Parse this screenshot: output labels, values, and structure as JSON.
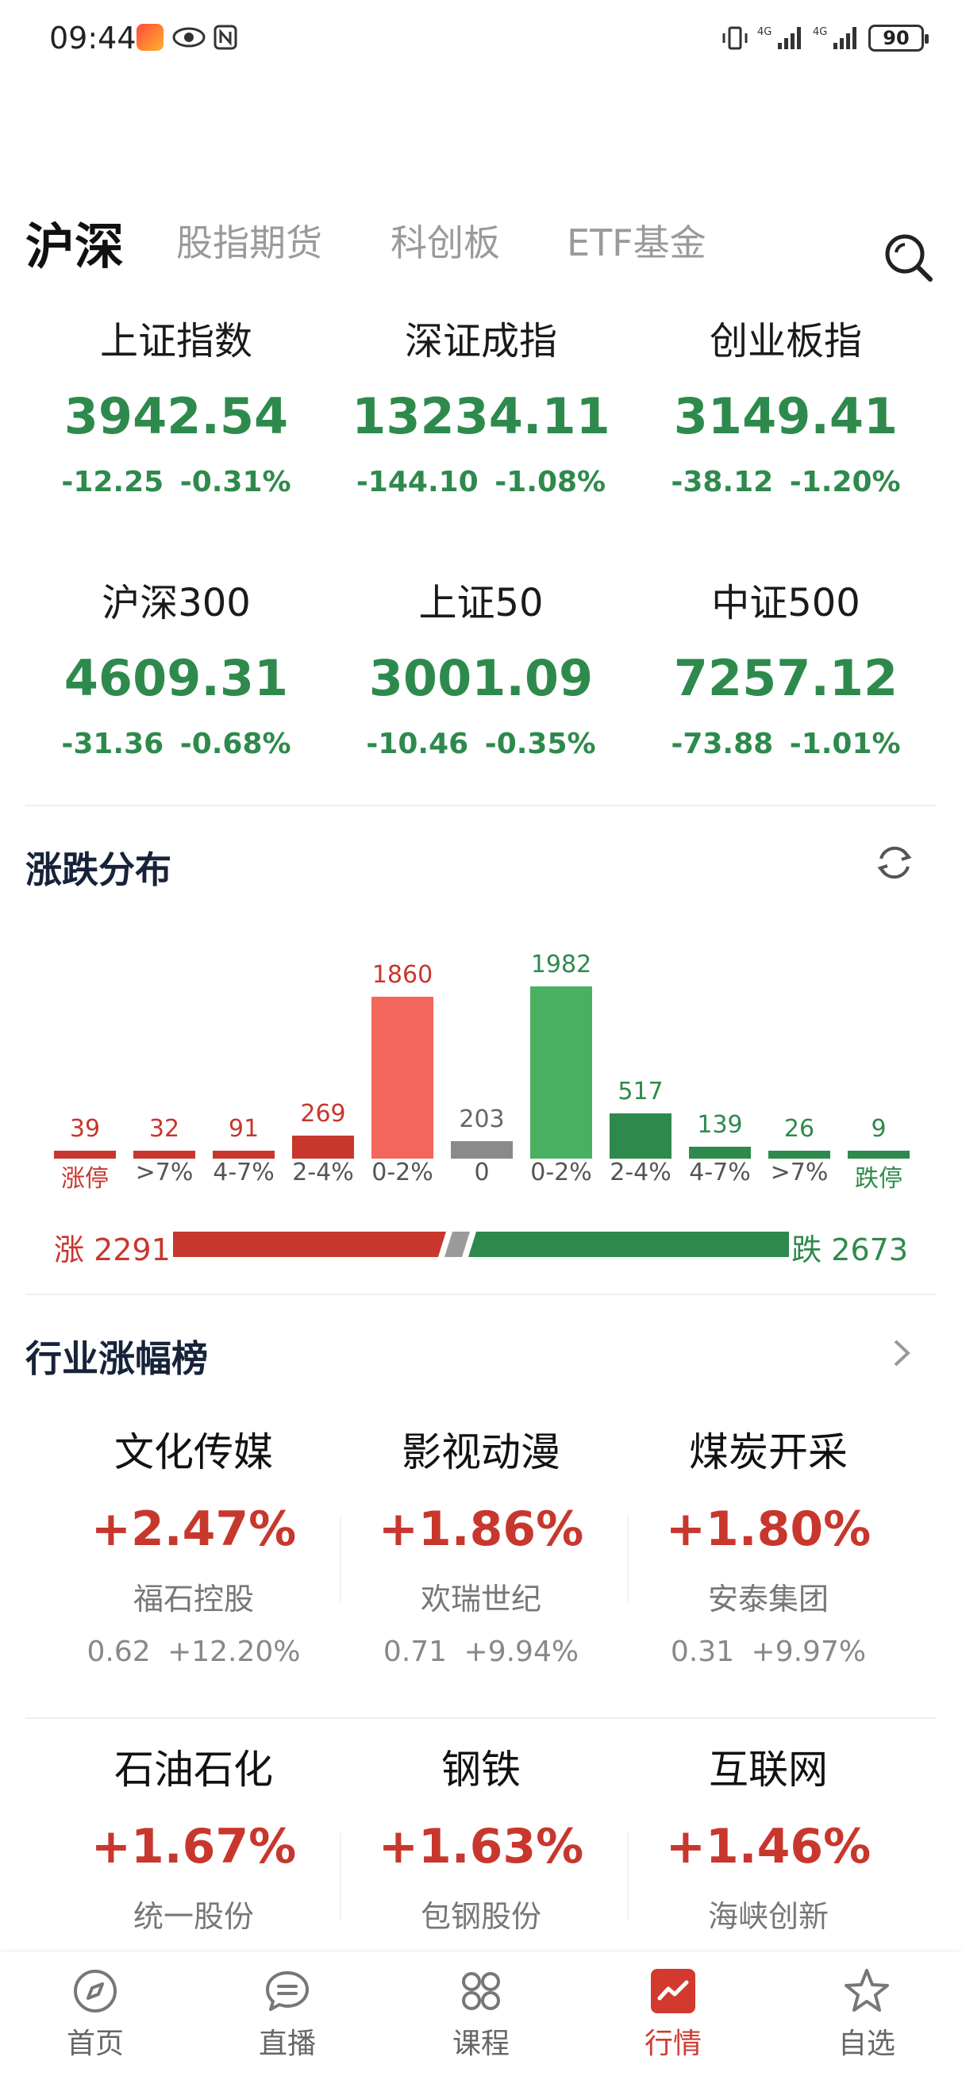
{
  "status_bar": {
    "time": "09:44",
    "battery": "90",
    "signal1": "4G",
    "signal2": "4G"
  },
  "tabs": [
    "沪深",
    "股指期货",
    "科创板",
    "ETF基金"
  ],
  "indices": [
    {
      "name": "上证指数",
      "value": "3942.54",
      "change": "-12.25",
      "pct": "-0.31%"
    },
    {
      "name": "深证成指",
      "value": "13234.11",
      "change": "-144.10",
      "pct": "-1.08%"
    },
    {
      "name": "创业板指",
      "value": "3149.41",
      "change": "-38.12",
      "pct": "-1.20%"
    },
    {
      "name": "沪深300",
      "value": "4609.31",
      "change": "-31.36",
      "pct": "-0.68%"
    },
    {
      "name": "上证50",
      "value": "3001.09",
      "change": "-10.46",
      "pct": "-0.35%"
    },
    {
      "name": "中证500",
      "value": "7257.12",
      "change": "-73.88",
      "pct": "-1.01%"
    }
  ],
  "distribution": {
    "title": "涨跌分布",
    "up_label": "涨 2291",
    "down_label": "跌 2673",
    "up_total": 2291,
    "down_total": 2673,
    "colors": {
      "up": "#c8372d",
      "up_light": "#f3665c",
      "flat": "#8a8a8a",
      "down": "#2e8a4c",
      "down_light": "#49b062"
    }
  },
  "chart_data": {
    "type": "bar",
    "categories": [
      "涨停",
      ">7%",
      "4-7%",
      "2-4%",
      "0-2%",
      "0",
      "0-2%",
      "2-4%",
      "4-7%",
      ">7%",
      "跌停"
    ],
    "values": [
      39,
      32,
      91,
      269,
      1860,
      203,
      1982,
      517,
      139,
      26,
      9
    ],
    "value_labels": [
      "39",
      "32",
      "91",
      "269",
      "1860",
      "203",
      "1982",
      "517",
      "139",
      "26",
      "9"
    ],
    "ylim": [
      0,
      2100
    ]
  },
  "industry": {
    "title": "行业涨幅榜",
    "items": [
      {
        "name": "文化传媒",
        "pct": "+2.47%",
        "stock": "福石控股",
        "price": "0.62",
        "stock_pct": "+12.20%"
      },
      {
        "name": "影视动漫",
        "pct": "+1.86%",
        "stock": "欢瑞世纪",
        "price": "0.71",
        "stock_pct": "+9.94%"
      },
      {
        "name": "煤炭开采",
        "pct": "+1.80%",
        "stock": "安泰集团",
        "price": "0.31",
        "stock_pct": "+9.97%"
      },
      {
        "name": "石油石化",
        "pct": "+1.67%",
        "stock": "统一股份",
        "price": "",
        "stock_pct": ""
      },
      {
        "name": "钢铁",
        "pct": "+1.63%",
        "stock": "包钢股份",
        "price": "",
        "stock_pct": ""
      },
      {
        "name": "互联网",
        "pct": "+1.46%",
        "stock": "海峡创新",
        "price": "",
        "stock_pct": ""
      }
    ]
  },
  "bottom_nav": [
    {
      "label": "首页",
      "icon": "compass-icon"
    },
    {
      "label": "直播",
      "icon": "chat-bubble-icon"
    },
    {
      "label": "课程",
      "icon": "grid-icon"
    },
    {
      "label": "行情",
      "icon": "chart-icon",
      "active": true
    },
    {
      "label": "自选",
      "icon": "star-icon"
    }
  ]
}
